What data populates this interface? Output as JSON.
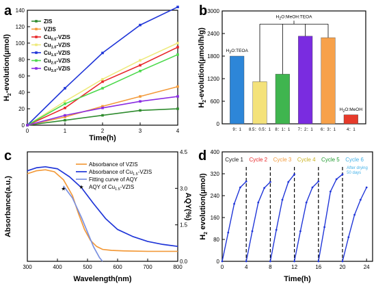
{
  "chart_data": [
    {
      "panel": "a",
      "type": "line",
      "xlabel": "Time(h)",
      "ylabel": "H2 evolution(μmol)",
      "ylabel_main": "H",
      "ylabel_sub": "2",
      "ylabel_rest": "-evolution(μmol)",
      "xlim": [
        0,
        4
      ],
      "ylim": [
        0,
        140
      ],
      "xticks": [
        "0",
        "1",
        "2",
        "3",
        "4"
      ],
      "yticks": [
        "0",
        "20",
        "40",
        "60",
        "80",
        "100",
        "120",
        "140"
      ],
      "x": [
        0,
        1,
        2,
        3,
        4
      ],
      "series": [
        {
          "name": "ZIS",
          "base": "ZIS",
          "sub": "",
          "tail": "",
          "color": "#2e8b2e",
          "values": [
            0,
            6,
            12,
            18,
            20
          ]
        },
        {
          "name": "VZIS",
          "base": "VZIS",
          "sub": "",
          "tail": "",
          "color": "#f39a3a",
          "values": [
            0,
            10,
            23,
            35,
            47
          ]
        },
        {
          "name": "Cu0.5-VZIS",
          "base": "Cu",
          "sub": "0.5",
          "tail": "-VZIS",
          "color": "#e8282a",
          "values": [
            0,
            21,
            53,
            73,
            95
          ]
        },
        {
          "name": "Cu1.0-VZIS",
          "base": "Cu",
          "sub": "1.0",
          "tail": "-VZIS",
          "color": "#eeea7c",
          "values": [
            0,
            29,
            56,
            79,
            100
          ]
        },
        {
          "name": "Cu1.5-VZIS",
          "base": "Cu",
          "sub": "1.5",
          "tail": "-VZIS",
          "color": "#1f35d8",
          "values": [
            0,
            45,
            88,
            122,
            144
          ]
        },
        {
          "name": "Cu2.0-VZIS",
          "base": "Cu",
          "sub": "2.0",
          "tail": "-VZIS",
          "color": "#4cd94c",
          "values": [
            0,
            26,
            45,
            66,
            86
          ]
        },
        {
          "name": "Cu3.0-VZIS",
          "base": "Cu",
          "sub": "3.0",
          "tail": "-VZIS",
          "color": "#8a2be2",
          "values": [
            0,
            12,
            21,
            29,
            35
          ]
        }
      ]
    },
    {
      "panel": "b",
      "type": "bar",
      "ylabel": "H2-evolution(μmol/h/g)",
      "ylabel_main": "H",
      "ylabel_sub": "2",
      "ylabel_rest": "-evolution(μmol/h/g)",
      "ylim": [
        0,
        3000
      ],
      "yticks": [
        "0",
        "600",
        "1200",
        "1800",
        "2400",
        "3000"
      ],
      "categories": [
        "9：1",
        "8.5：0.5：1",
        "8：1：1",
        "7：2：1",
        "6：3：1",
        "4：1"
      ],
      "values": [
        1800,
        1120,
        1320,
        2330,
        2290,
        240
      ],
      "colors": [
        "#2d86d8",
        "#f4e27a",
        "#3fb54f",
        "#7a2ce0",
        "#f7a14a",
        "#e63a2a"
      ],
      "annotations": [
        {
          "text": "H2O:TEOA",
          "main": "H",
          "sub": "2",
          "tail": "O:TEOA"
        },
        {
          "text": "H2O:MeOH:TEOA",
          "main": "H",
          "sub": "2",
          "tail": "O:MeOH:TEOA"
        },
        {
          "text": "H2O:MeOH",
          "main": "H",
          "sub": "2",
          "tail": "O:MeOH"
        }
      ]
    },
    {
      "panel": "c",
      "type": "line",
      "xlabel": "Wavelength(nm)",
      "ylabel_left": "Absorbance(a.u.)",
      "ylabel_right": "AQY(%)",
      "xlim": [
        300,
        800
      ],
      "xticks": [
        "300",
        "400",
        "500",
        "600",
        "700",
        "800"
      ],
      "ylim_right": [
        0,
        4.5
      ],
      "yticks_right": [
        "0.0",
        "1.5",
        "3.0",
        "4.5"
      ],
      "legend": [
        {
          "name": "Absorbance of VZIS",
          "base": "Absorbance of VZIS",
          "sub": "",
          "tail": "",
          "color": "#f39a3a",
          "kind": "line"
        },
        {
          "name": "Absorbance of Cu1.5-VZIS",
          "base": "Absorbance of Cu",
          "sub": "1.5",
          "tail": "-VZIS",
          "color": "#1f35d8",
          "kind": "line"
        },
        {
          "name": "Fitting curve of AQY",
          "base": "Fitting curve of AQY",
          "sub": "",
          "tail": "",
          "color": "#7a90e0",
          "kind": "line"
        },
        {
          "name": "AQY of Cu1.5-VZIS",
          "base": "AQY of Cu",
          "sub": "1.5",
          "tail": "-VZIS",
          "color": "#2a3a9a",
          "kind": "star"
        }
      ],
      "series": [
        {
          "name": "Absorbance of VZIS",
          "color": "#f39a3a",
          "x": [
            300,
            330,
            360,
            390,
            420,
            450,
            470,
            490,
            510,
            530,
            550,
            580,
            620,
            700,
            800
          ],
          "y": [
            0.88,
            0.91,
            0.92,
            0.9,
            0.82,
            0.66,
            0.48,
            0.32,
            0.21,
            0.15,
            0.12,
            0.11,
            0.105,
            0.1,
            0.1
          ]
        },
        {
          "name": "Absorbance of Cu1.5-VZIS",
          "color": "#1f35d8",
          "x": [
            300,
            330,
            360,
            400,
            440,
            480,
            520,
            560,
            600,
            650,
            700,
            750,
            800
          ],
          "y": [
            0.91,
            0.94,
            0.95,
            0.93,
            0.85,
            0.74,
            0.58,
            0.43,
            0.32,
            0.25,
            0.2,
            0.17,
            0.15
          ]
        },
        {
          "name": "Fitting curve of AQY",
          "color": "#7a90e0",
          "x": [
            420,
            450,
            480,
            500,
            520,
            540,
            550
          ],
          "y_right": [
            3.1,
            2.6,
            1.8,
            1.2,
            0.6,
            0.15,
            0.0
          ]
        }
      ],
      "points": {
        "name": "AQY of Cu1.5-VZIS",
        "color": "#2a3a9a",
        "x": [
          420
        ],
        "y_right": [
          3.0
        ]
      }
    },
    {
      "panel": "d",
      "type": "line",
      "xlabel": "Time(h)",
      "ylabel": "H2 evolution(μmol)",
      "ylabel_main": "H",
      "ylabel_sub": "2",
      "ylabel_rest": " evolution(μmol)",
      "xlim": [
        0,
        25
      ],
      "ylim": [
        0,
        400
      ],
      "xticks": [
        "0",
        "4",
        "8",
        "12",
        "16",
        "20",
        "24"
      ],
      "yticks": [
        "0",
        "80",
        "160",
        "240",
        "320",
        "400"
      ],
      "dividers": [
        4,
        8,
        12,
        16,
        20
      ],
      "cycles": [
        {
          "label": "Cycle 1",
          "color": "#111111"
        },
        {
          "label": "Cycle 2",
          "color": "#e8282a"
        },
        {
          "label": "Cycle 3",
          "color": "#f39a3a"
        },
        {
          "label": "Cycle 4",
          "color": "#c9b21f"
        },
        {
          "label": "Cycle 5",
          "color": "#1f9a2e"
        },
        {
          "label": "Cycle 6",
          "color": "#3fb0e8"
        }
      ],
      "after_note": [
        "After drying",
        "50 days"
      ],
      "line_color": "#1f35d8",
      "segments": [
        {
          "x": [
            0,
            1,
            2,
            3,
            4
          ],
          "y": [
            0,
            105,
            210,
            270,
            292
          ]
        },
        {
          "x": [
            4,
            5,
            6,
            7,
            8
          ],
          "y": [
            0,
            110,
            215,
            268,
            290
          ]
        },
        {
          "x": [
            8,
            9,
            10,
            11,
            12
          ],
          "y": [
            0,
            115,
            225,
            290,
            318
          ]
        },
        {
          "x": [
            12,
            13,
            14,
            15,
            16
          ],
          "y": [
            0,
            110,
            215,
            270,
            292
          ]
        },
        {
          "x": [
            16,
            17,
            18,
            19,
            20
          ],
          "y": [
            0,
            125,
            255,
            300,
            318
          ]
        },
        {
          "x": [
            20,
            21,
            22,
            23,
            24
          ],
          "y": [
            0,
            88,
            170,
            225,
            270
          ]
        }
      ]
    }
  ]
}
